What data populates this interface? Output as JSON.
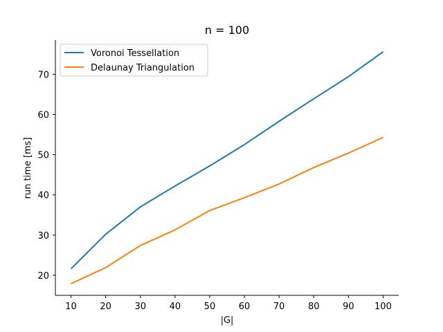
{
  "chart_data": {
    "type": "line",
    "title": "n = 100",
    "xlabel": "|G|",
    "ylabel": "run time [ms]",
    "x": [
      10,
      20,
      30,
      40,
      50,
      60,
      70,
      80,
      90,
      100
    ],
    "xticks": [
      10,
      20,
      30,
      40,
      50,
      60,
      70,
      80,
      90,
      100
    ],
    "yticks": [
      20,
      30,
      40,
      50,
      60,
      70
    ],
    "xlim": [
      5.5,
      104.5
    ],
    "ylim": [
      15.0,
      78.5
    ],
    "grid": false,
    "legend_position": "top-left",
    "series": [
      {
        "name": "Voronoi Tessellation",
        "color": "#1f77b4",
        "values": [
          21.6,
          30.2,
          37.0,
          42.2,
          47.2,
          52.5,
          58.3,
          63.9,
          69.4,
          75.6
        ]
      },
      {
        "name": "Delaunay Triangulation",
        "color": "#ff7f0e",
        "values": [
          17.9,
          21.9,
          27.4,
          31.3,
          36.1,
          39.3,
          42.7,
          46.8,
          50.4,
          54.3
        ]
      }
    ]
  }
}
